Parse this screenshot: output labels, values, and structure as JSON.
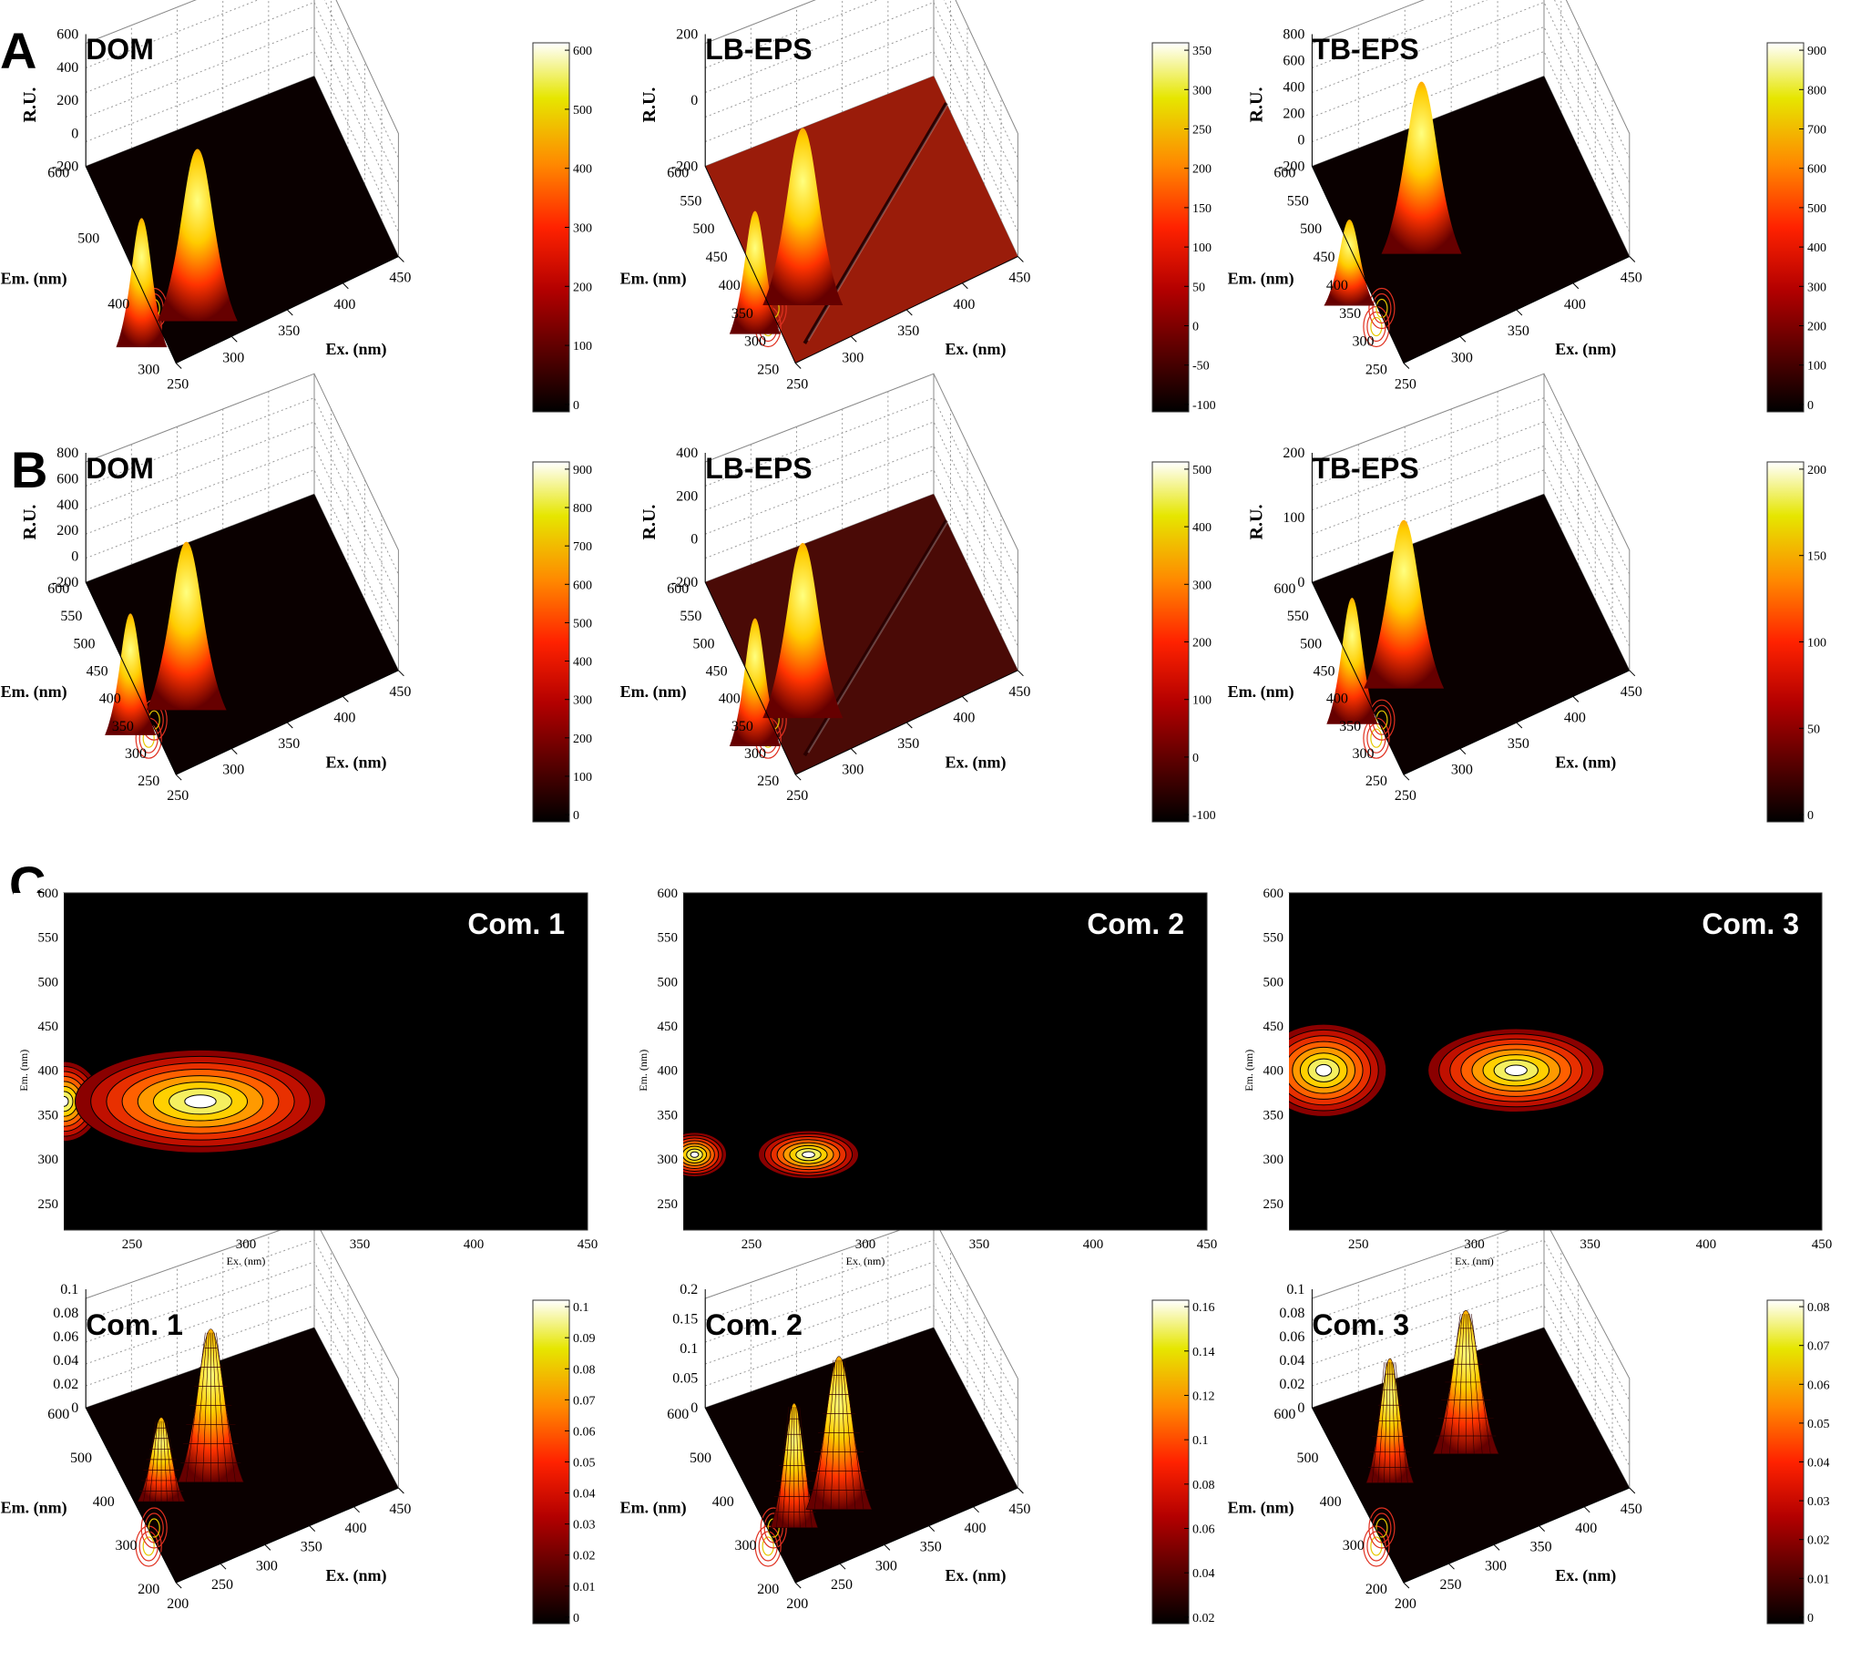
{
  "figure": {
    "row_labels": [
      "A",
      "B",
      "C"
    ]
  },
  "chart_data": [
    {
      "id": "A-DOM",
      "type": "surface3d",
      "title": "DOM",
      "xlabel": "Ex. (nm)",
      "ylabel": "Em. (nm)",
      "zlabel": "R.U.",
      "x_ticks": [
        "250",
        "300",
        "350",
        "400",
        "450"
      ],
      "y_ticks": [
        "300",
        "400",
        "500",
        "600"
      ],
      "z_ticks": [
        "-200",
        "0",
        "200",
        "400",
        "600"
      ],
      "colorbar_ticks": [
        "0",
        "100",
        "200",
        "300",
        "400",
        "500",
        "600"
      ],
      "peaks": [
        {
          "ex": 230,
          "em": 340,
          "z": 450
        },
        {
          "ex": 280,
          "em": 340,
          "z": 600
        }
      ]
    },
    {
      "id": "A-LB",
      "type": "surface3d",
      "title": "LB-EPS",
      "xlabel": "Ex. (nm)",
      "ylabel": "Em. (nm)",
      "zlabel": "R.U.",
      "x_ticks": [
        "250",
        "300",
        "350",
        "400",
        "450"
      ],
      "y_ticks": [
        "250",
        "300",
        "350",
        "400",
        "450",
        "500",
        "550",
        "600"
      ],
      "z_ticks": [
        "-200",
        "0",
        "200"
      ],
      "colorbar_ticks": [
        "-100",
        "-50",
        "0",
        "50",
        "100",
        "150",
        "200",
        "250",
        "300",
        "350"
      ],
      "peaks": [
        {
          "ex": 230,
          "em": 320,
          "z": 250
        },
        {
          "ex": 275,
          "em": 330,
          "z": 360
        }
      ]
    },
    {
      "id": "A-TB",
      "type": "surface3d",
      "title": "TB-EPS",
      "xlabel": "Ex. (nm)",
      "ylabel": "Em. (nm)",
      "zlabel": "R.U.",
      "x_ticks": [
        "250",
        "300",
        "350",
        "400",
        "450"
      ],
      "y_ticks": [
        "250",
        "300",
        "350",
        "400",
        "450",
        "500",
        "550",
        "600"
      ],
      "z_ticks": [
        "-200",
        "0",
        "200",
        "400",
        "600",
        "800"
      ],
      "colorbar_ticks": [
        "0",
        "100",
        "200",
        "300",
        "400",
        "500",
        "600",
        "700",
        "800",
        "900"
      ],
      "peaks": [
        {
          "ex": 230,
          "em": 370,
          "z": 450
        },
        {
          "ex": 300,
          "em": 400,
          "z": 900
        }
      ]
    },
    {
      "id": "B-DOM",
      "type": "surface3d",
      "title": "DOM",
      "xlabel": "Ex. (nm)",
      "ylabel": "Em. (nm)",
      "zlabel": "R.U.",
      "x_ticks": [
        "250",
        "300",
        "350",
        "400",
        "450"
      ],
      "y_ticks": [
        "250",
        "300",
        "350",
        "400",
        "450",
        "500",
        "550",
        "600"
      ],
      "z_ticks": [
        "-200",
        "0",
        "200",
        "400",
        "600",
        "800"
      ],
      "colorbar_ticks": [
        "0",
        "100",
        "200",
        "300",
        "400",
        "500",
        "600",
        "700",
        "800",
        "900"
      ],
      "peaks": [
        {
          "ex": 230,
          "em": 340,
          "z": 650
        },
        {
          "ex": 280,
          "em": 340,
          "z": 900
        }
      ]
    },
    {
      "id": "B-LB",
      "type": "surface3d",
      "title": "LB-EPS",
      "xlabel": "Ex. (nm)",
      "ylabel": "Em. (nm)",
      "zlabel": "R.U.",
      "x_ticks": [
        "250",
        "300",
        "350",
        "400",
        "450"
      ],
      "y_ticks": [
        "250",
        "300",
        "350",
        "400",
        "450",
        "500",
        "550",
        "600"
      ],
      "z_ticks": [
        "-200",
        "0",
        "200",
        "400"
      ],
      "colorbar_ticks": [
        "-100",
        "0",
        "100",
        "200",
        "300",
        "400",
        "500"
      ],
      "peaks": [
        {
          "ex": 230,
          "em": 320,
          "z": 380
        },
        {
          "ex": 275,
          "em": 330,
          "z": 520
        }
      ]
    },
    {
      "id": "B-TB",
      "type": "surface3d",
      "title": "TB-EPS",
      "xlabel": "Ex. (nm)",
      "ylabel": "Em. (nm)",
      "zlabel": "R.U.",
      "x_ticks": [
        "250",
        "300",
        "350",
        "400",
        "450"
      ],
      "y_ticks": [
        "250",
        "300",
        "350",
        "400",
        "450",
        "500",
        "550",
        "600"
      ],
      "z_ticks": [
        "0",
        "100",
        "200"
      ],
      "colorbar_ticks": [
        "0",
        "50",
        "100",
        "150",
        "200"
      ],
      "peaks": [
        {
          "ex": 230,
          "em": 360,
          "z": 150
        },
        {
          "ex": 280,
          "em": 380,
          "z": 200
        }
      ]
    },
    {
      "id": "C-contour-1",
      "type": "contour",
      "title": "Com. 1",
      "xlabel": "Ex. (nm)",
      "ylabel": "Em. (nm)",
      "x_ticks": [
        "250",
        "300",
        "350",
        "400",
        "450"
      ],
      "y_ticks": [
        "250",
        "300",
        "350",
        "400",
        "450",
        "500",
        "550",
        "600"
      ],
      "peaks": [
        {
          "ex": 220,
          "em": 365,
          "rx": 16,
          "ry": 45
        },
        {
          "ex": 280,
          "em": 365,
          "rx": 55,
          "ry": 58
        }
      ]
    },
    {
      "id": "C-contour-2",
      "type": "contour",
      "title": "Com. 2",
      "xlabel": "Ex. (nm)",
      "ylabel": "Em. (nm)",
      "x_ticks": [
        "250",
        "300",
        "350",
        "400",
        "450"
      ],
      "y_ticks": [
        "250",
        "300",
        "350",
        "400",
        "450",
        "500",
        "550",
        "600"
      ],
      "peaks": [
        {
          "ex": 225,
          "em": 305,
          "rx": 14,
          "ry": 25
        },
        {
          "ex": 275,
          "em": 305,
          "rx": 22,
          "ry": 27
        }
      ]
    },
    {
      "id": "C-contour-3",
      "type": "contour",
      "title": "Com. 3",
      "xlabel": "Ex. (nm)",
      "ylabel": "Em. (nm)",
      "x_ticks": [
        "250",
        "300",
        "350",
        "400",
        "450"
      ],
      "y_ticks": [
        "250",
        "300",
        "350",
        "400",
        "450",
        "500",
        "550",
        "600"
      ],
      "peaks": [
        {
          "ex": 235,
          "em": 400,
          "rx": 27,
          "ry": 52
        },
        {
          "ex": 318,
          "em": 400,
          "rx": 38,
          "ry": 47
        }
      ]
    },
    {
      "id": "C-surface-1",
      "type": "surface3d",
      "title": "Com. 1",
      "xlabel": "Ex. (nm)",
      "ylabel": "Em. (nm)",
      "zlabel": "",
      "x_ticks": [
        "200",
        "250",
        "300",
        "350",
        "400",
        "450"
      ],
      "y_ticks": [
        "200",
        "300",
        "400",
        "500",
        "600"
      ],
      "z_ticks": [
        "0",
        "0.02",
        "0.04",
        "0.06",
        "0.08",
        "0.1"
      ],
      "colorbar_ticks": [
        "0",
        "0.01",
        "0.02",
        "0.03",
        "0.04",
        "0.05",
        "0.06",
        "0.07",
        "0.08",
        "0.09",
        "0.1"
      ],
      "peaks": [
        {
          "ex": 225,
          "em": 365,
          "z": 0.055
        },
        {
          "ex": 280,
          "em": 365,
          "z": 0.1
        }
      ]
    },
    {
      "id": "C-surface-2",
      "type": "surface3d",
      "title": "Com. 2",
      "xlabel": "Ex. (nm)",
      "ylabel": "Em. (nm)",
      "zlabel": "",
      "x_ticks": [
        "200",
        "250",
        "300",
        "350",
        "400",
        "450"
      ],
      "y_ticks": [
        "200",
        "300",
        "400",
        "500",
        "600"
      ],
      "z_ticks": [
        "0",
        "0.05",
        "0.1",
        "0.15",
        "0.2"
      ],
      "colorbar_ticks": [
        "0.02",
        "0.04",
        "0.06",
        "0.08",
        "0.1",
        "0.12",
        "0.14",
        "0.16"
      ],
      "peaks": [
        {
          "ex": 225,
          "em": 305,
          "z": 0.13
        },
        {
          "ex": 275,
          "em": 305,
          "z": 0.16
        }
      ]
    },
    {
      "id": "C-surface-3",
      "type": "surface3d",
      "title": "Com. 3",
      "xlabel": "Ex. (nm)",
      "ylabel": "Em. (nm)",
      "zlabel": "",
      "x_ticks": [
        "200",
        "250",
        "300",
        "350",
        "400",
        "450"
      ],
      "y_ticks": [
        "200",
        "300",
        "400",
        "500",
        "600"
      ],
      "z_ticks": [
        "0",
        "0.02",
        "0.04",
        "0.06",
        "0.08",
        "0.1"
      ],
      "colorbar_ticks": [
        "0",
        "0.01",
        "0.02",
        "0.03",
        "0.04",
        "0.05",
        "0.06",
        "0.07",
        "0.08"
      ],
      "peaks": [
        {
          "ex": 235,
          "em": 400,
          "z": 0.065
        },
        {
          "ex": 318,
          "em": 400,
          "z": 0.075
        }
      ]
    }
  ]
}
